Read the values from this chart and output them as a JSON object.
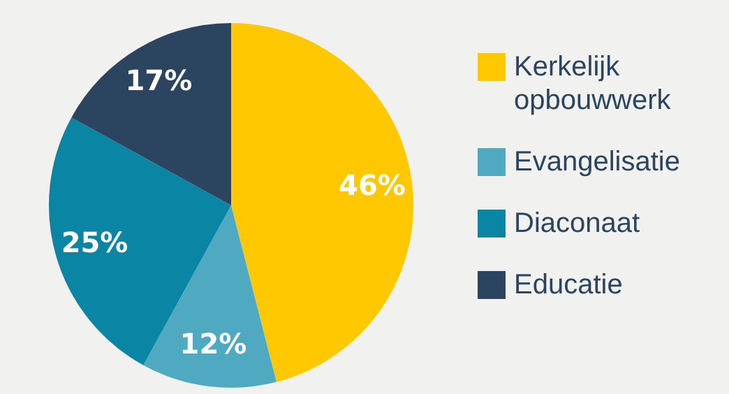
{
  "chart_data": {
    "type": "pie",
    "categories": [
      "Kerkelijk opbouwwerk",
      "Evangelisatie",
      "Diaconaat",
      "Educatie"
    ],
    "values": [
      46,
      12,
      25,
      17
    ],
    "colors": [
      "#ffc800",
      "#4fa9c1",
      "#0a85a3",
      "#2b4560"
    ],
    "value_labels": [
      "46%",
      "12%",
      "25%",
      "17%"
    ],
    "legend": "right"
  }
}
